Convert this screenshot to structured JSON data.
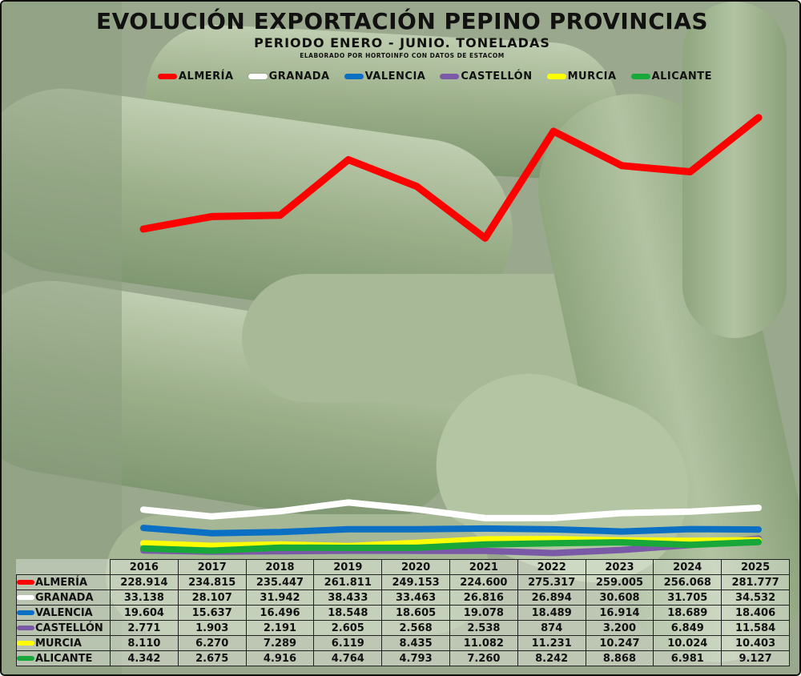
{
  "chart_data": {
    "type": "line",
    "title": "EVOLUCIÓN EXPORTACIÓN PEPINO PROVINCIAS",
    "subtitle": "PERIODO ENERO - JUNIO. TONELADAS",
    "credit": "ELABORADO POR HORTOINFO CON DATOS DE ESTACOM",
    "xlabel": "",
    "ylabel": "",
    "legend_position": "top",
    "grid": false,
    "x": [
      "2016",
      "2017",
      "2018",
      "2019",
      "2020",
      "2021",
      "2022",
      "2023",
      "2024",
      "2025"
    ],
    "series": [
      {
        "name": "ALMERÍA",
        "color": "#ff0000",
        "values": [
          228914,
          234815,
          235447,
          261811,
          249153,
          224600,
          275317,
          259005,
          256068,
          281777
        ],
        "labels": [
          "228.914",
          "234.815",
          "235.447",
          "261.811",
          "249.153",
          "224.600",
          "275.317",
          "259.005",
          "256.068",
          "281.777"
        ]
      },
      {
        "name": "GRANADA",
        "color": "#ffffff",
        "values": [
          33138,
          28107,
          31942,
          38433,
          33463,
          26816,
          26894,
          30608,
          31705,
          34532
        ],
        "labels": [
          "33.138",
          "28.107",
          "31.942",
          "38.433",
          "33.463",
          "26.816",
          "26.894",
          "30.608",
          "31.705",
          "34.532"
        ]
      },
      {
        "name": "VALENCIA",
        "color": "#0b6fc4",
        "values": [
          19604,
          15637,
          16496,
          18548,
          18605,
          19078,
          18489,
          16914,
          18689,
          18406
        ],
        "labels": [
          "19.604",
          "15.637",
          "16.496",
          "18.548",
          "18.605",
          "19.078",
          "18.489",
          "16.914",
          "18.689",
          "18.406"
        ]
      },
      {
        "name": "CASTELLÓN",
        "color": "#7a5aa6",
        "values": [
          2771,
          1903,
          2191,
          2605,
          2568,
          2538,
          874,
          3200,
          6849,
          11584
        ],
        "labels": [
          "2.771",
          "1.903",
          "2.191",
          "2.605",
          "2.568",
          "2.538",
          "874",
          "3.200",
          "6.849",
          "11.584"
        ]
      },
      {
        "name": "MURCIA",
        "color": "#ffff00",
        "values": [
          8110,
          6270,
          7289,
          6119,
          8435,
          11082,
          11231,
          10247,
          10024,
          10403
        ],
        "labels": [
          "8.110",
          "6.270",
          "7.289",
          "6.119",
          "8.435",
          "11.082",
          "11.231",
          "10.247",
          "10.024",
          "10.403"
        ]
      },
      {
        "name": "ALICANTE",
        "color": "#18a83a",
        "values": [
          4342,
          2675,
          4916,
          4764,
          4793,
          7260,
          8242,
          8868,
          6981,
          9127
        ],
        "labels": [
          "4.342",
          "2.675",
          "4.916",
          "4.764",
          "4.793",
          "7.260",
          "8.242",
          "8.868",
          "6.981",
          "9.127"
        ]
      }
    ]
  }
}
